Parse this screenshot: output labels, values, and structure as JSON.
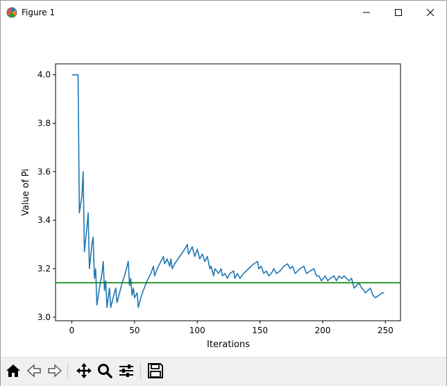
{
  "window": {
    "title": "Figure 1",
    "app_icon": "matplotlib-icon",
    "controls": [
      "minimize-icon",
      "maximize-icon",
      "close-icon"
    ]
  },
  "toolbar": {
    "buttons": [
      {
        "name": "home-button",
        "icon": "home-icon"
      },
      {
        "name": "back-button",
        "icon": "arrow-left-icon"
      },
      {
        "name": "forward-button",
        "icon": "arrow-right-icon"
      },
      {
        "name": "pan-button",
        "icon": "move-icon"
      },
      {
        "name": "zoom-button",
        "icon": "magnifier-icon"
      },
      {
        "name": "configure-subplots-button",
        "icon": "sliders-icon"
      },
      {
        "name": "save-button",
        "icon": "floppy-disk-icon"
      }
    ]
  },
  "chart_data": {
    "type": "line",
    "title": "",
    "xlabel": "Iterations",
    "ylabel": "Value of Pi",
    "xlim": [
      -13,
      262
    ],
    "ylim": [
      2.985,
      4.045
    ],
    "xticks": [
      0,
      50,
      100,
      150,
      200,
      250
    ],
    "xtick_labels": [
      "0",
      "50",
      "100",
      "150",
      "200",
      "250"
    ],
    "yticks": [
      3.0,
      3.2,
      3.4,
      3.6,
      3.8,
      4.0
    ],
    "ytick_labels": [
      "3.0",
      "3.2",
      "3.4",
      "3.6",
      "3.8",
      "4.0"
    ],
    "grid": false,
    "series": [
      {
        "color": "#1f77b4",
        "points": [
          [
            0,
            4.0
          ],
          [
            2,
            4.0
          ],
          [
            4,
            4.0
          ],
          [
            5,
            4.0
          ],
          [
            6,
            3.43
          ],
          [
            8,
            3.5
          ],
          [
            9,
            3.6
          ],
          [
            10,
            3.27
          ],
          [
            12,
            3.37
          ],
          [
            13,
            3.43
          ],
          [
            14,
            3.2
          ],
          [
            16,
            3.3
          ],
          [
            17,
            3.33
          ],
          [
            18,
            3.16
          ],
          [
            19,
            3.2
          ],
          [
            20,
            3.05
          ],
          [
            22,
            3.12
          ],
          [
            24,
            3.18
          ],
          [
            25,
            3.23
          ],
          [
            26,
            3.11
          ],
          [
            27,
            3.15
          ],
          [
            28,
            3.04
          ],
          [
            29,
            3.08
          ],
          [
            30,
            3.12
          ],
          [
            31,
            3.04
          ],
          [
            33,
            3.08
          ],
          [
            35,
            3.12
          ],
          [
            36,
            3.06
          ],
          [
            38,
            3.1
          ],
          [
            40,
            3.14
          ],
          [
            42,
            3.17
          ],
          [
            44,
            3.21
          ],
          [
            45,
            3.23
          ],
          [
            46,
            3.13
          ],
          [
            47,
            3.16
          ],
          [
            48,
            3.09
          ],
          [
            49,
            3.12
          ],
          [
            50,
            3.08
          ],
          [
            52,
            3.1
          ],
          [
            53,
            3.04
          ],
          [
            55,
            3.08
          ],
          [
            57,
            3.11
          ],
          [
            60,
            3.15
          ],
          [
            63,
            3.18
          ],
          [
            65,
            3.21
          ],
          [
            66,
            3.17
          ],
          [
            68,
            3.2
          ],
          [
            71,
            3.23
          ],
          [
            73,
            3.25
          ],
          [
            74,
            3.22
          ],
          [
            76,
            3.24
          ],
          [
            78,
            3.21
          ],
          [
            79,
            3.24
          ],
          [
            80,
            3.2
          ],
          [
            82,
            3.22
          ],
          [
            86,
            3.25
          ],
          [
            90,
            3.28
          ],
          [
            92,
            3.3
          ],
          [
            93,
            3.26
          ],
          [
            96,
            3.29
          ],
          [
            98,
            3.25
          ],
          [
            100,
            3.28
          ],
          [
            102,
            3.24
          ],
          [
            104,
            3.26
          ],
          [
            106,
            3.23
          ],
          [
            108,
            3.25
          ],
          [
            110,
            3.2
          ],
          [
            111,
            3.21
          ],
          [
            113,
            3.17
          ],
          [
            114,
            3.2
          ],
          [
            117,
            3.18
          ],
          [
            119,
            3.2
          ],
          [
            120,
            3.17
          ],
          [
            122,
            3.18
          ],
          [
            124,
            3.16
          ],
          [
            126,
            3.18
          ],
          [
            129,
            3.19
          ],
          [
            130,
            3.16
          ],
          [
            132,
            3.18
          ],
          [
            134,
            3.16
          ],
          [
            137,
            3.18
          ],
          [
            141,
            3.2
          ],
          [
            145,
            3.22
          ],
          [
            148,
            3.23
          ],
          [
            149,
            3.2
          ],
          [
            151,
            3.21
          ],
          [
            153,
            3.18
          ],
          [
            155,
            3.19
          ],
          [
            157,
            3.17
          ],
          [
            159,
            3.18
          ],
          [
            161,
            3.2
          ],
          [
            163,
            3.18
          ],
          [
            166,
            3.19
          ],
          [
            169,
            3.21
          ],
          [
            172,
            3.22
          ],
          [
            174,
            3.2
          ],
          [
            176,
            3.21
          ],
          [
            178,
            3.18
          ],
          [
            180,
            3.19
          ],
          [
            182,
            3.2
          ],
          [
            185,
            3.21
          ],
          [
            187,
            3.18
          ],
          [
            190,
            3.19
          ],
          [
            193,
            3.2
          ],
          [
            195,
            3.17
          ],
          [
            197,
            3.17
          ],
          [
            199,
            3.15
          ],
          [
            202,
            3.17
          ],
          [
            204,
            3.15
          ],
          [
            206,
            3.16
          ],
          [
            209,
            3.17
          ],
          [
            211,
            3.15
          ],
          [
            213,
            3.17
          ],
          [
            215,
            3.16
          ],
          [
            217,
            3.17
          ],
          [
            219,
            3.16
          ],
          [
            221,
            3.15
          ],
          [
            223,
            3.16
          ],
          [
            225,
            3.12
          ],
          [
            227,
            3.13
          ],
          [
            229,
            3.14
          ],
          [
            231,
            3.12
          ],
          [
            233,
            3.11
          ],
          [
            234,
            3.1
          ],
          [
            236,
            3.11
          ],
          [
            238,
            3.12
          ],
          [
            240,
            3.09
          ],
          [
            242,
            3.08
          ],
          [
            245,
            3.09
          ],
          [
            247,
            3.1
          ],
          [
            249,
            3.1
          ]
        ]
      },
      {
        "color": "#008000",
        "type": "hline",
        "y": 3.14159
      }
    ]
  }
}
